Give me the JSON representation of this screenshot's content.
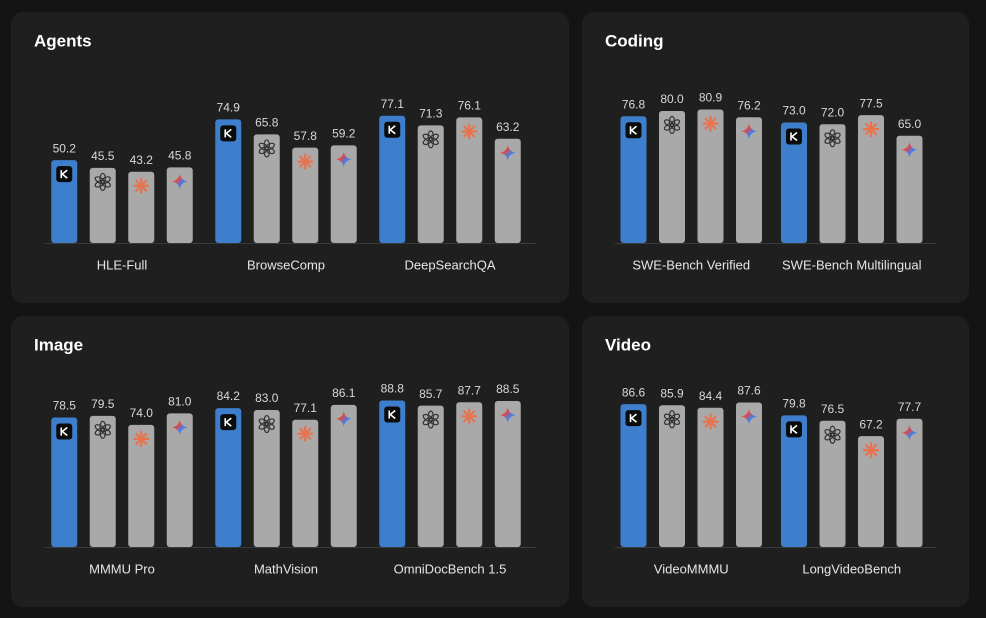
{
  "chart_data": [
    {
      "type": "bar",
      "title": "Agents",
      "categories": [
        "HLE-Full",
        "BrowseComp",
        "DeepSearchQA"
      ],
      "ylim": [
        0,
        100
      ],
      "series": [
        {
          "color": "#3d7fcc",
          "values": [
            50.2,
            74.9,
            77.1
          ],
          "value_labels": [
            "50.2",
            "74.9",
            "77.1"
          ]
        },
        {
          "color": "#a9a9a9",
          "values": [
            45.5,
            65.8,
            71.3
          ],
          "value_labels": [
            "45.5",
            "65.8",
            "71.3"
          ]
        },
        {
          "color": "#a9a9a9",
          "values": [
            43.2,
            57.8,
            76.1
          ],
          "value_labels": [
            "43.2",
            "57.8",
            "76.1"
          ]
        },
        {
          "color": "#a9a9a9",
          "values": [
            45.8,
            59.2,
            63.2
          ],
          "value_labels": [
            "45.8",
            "59.2",
            "63.2"
          ]
        }
      ]
    },
    {
      "type": "bar",
      "title": "Coding",
      "categories": [
        "SWE-Bench Verified",
        "SWE-Bench Multilingual"
      ],
      "ylim": [
        0,
        100
      ],
      "series": [
        {
          "color": "#3d7fcc",
          "values": [
            76.8,
            73.0
          ],
          "value_labels": [
            "76.8",
            "73.0"
          ]
        },
        {
          "color": "#a9a9a9",
          "values": [
            80.0,
            72.0
          ],
          "value_labels": [
            "80.0",
            "72.0"
          ]
        },
        {
          "color": "#a9a9a9",
          "values": [
            80.9,
            77.5
          ],
          "value_labels": [
            "80.9",
            "77.5"
          ]
        },
        {
          "color": "#a9a9a9",
          "values": [
            76.2,
            65.0
          ],
          "value_labels": [
            "76.2",
            "65.0"
          ]
        }
      ]
    },
    {
      "type": "bar",
      "title": "Image",
      "categories": [
        "MMMU Pro",
        "MathVision",
        "OmniDocBench 1.5"
      ],
      "ylim": [
        0,
        100
      ],
      "series": [
        {
          "color": "#3d7fcc",
          "values": [
            78.5,
            84.2,
            88.8
          ],
          "value_labels": [
            "78.5",
            "84.2",
            "88.8"
          ]
        },
        {
          "color": "#a9a9a9",
          "values": [
            79.5,
            83.0,
            85.7
          ],
          "value_labels": [
            "79.5",
            "83.0",
            "85.7"
          ]
        },
        {
          "color": "#a9a9a9",
          "values": [
            74.0,
            77.1,
            87.7
          ],
          "value_labels": [
            "74.0",
            "77.1",
            "87.7"
          ]
        },
        {
          "color": "#a9a9a9",
          "values": [
            81.0,
            86.1,
            88.5
          ],
          "value_labels": [
            "81.0",
            "86.1",
            "88.5"
          ]
        }
      ]
    },
    {
      "type": "bar",
      "title": "Video",
      "categories": [
        "VideoMMMU",
        "LongVideoBench"
      ],
      "ylim": [
        0,
        100
      ],
      "series": [
        {
          "color": "#3d7fcc",
          "values": [
            86.6,
            79.8
          ],
          "value_labels": [
            "86.6",
            "79.8"
          ]
        },
        {
          "color": "#a9a9a9",
          "values": [
            85.9,
            76.5
          ],
          "value_labels": [
            "85.9",
            "76.5"
          ]
        },
        {
          "color": "#a9a9a9",
          "values": [
            84.4,
            67.2
          ],
          "value_labels": [
            "84.4",
            "67.2"
          ]
        },
        {
          "color": "#a9a9a9",
          "values": [
            87.6,
            77.7
          ],
          "value_labels": [
            "87.6",
            "77.7"
          ]
        }
      ]
    }
  ]
}
